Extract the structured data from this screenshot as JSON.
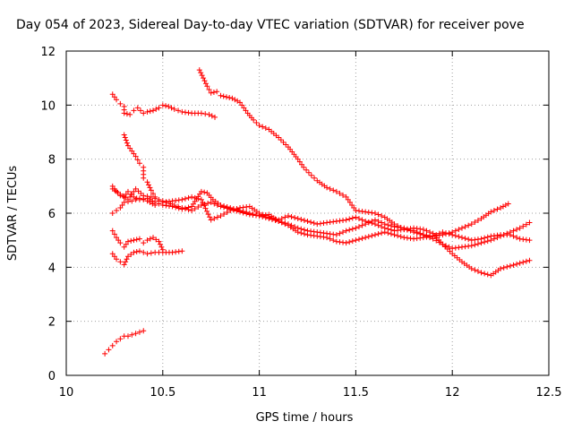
{
  "chart_data": {
    "type": "scatter",
    "title": "Day 054 of 2023, Sidereal Day-to-day VTEC variation (SDTVAR) for receiver pove",
    "xlabel": "GPS time / hours",
    "ylabel": "SDTVAR / TECUs",
    "xlim": [
      10,
      12.5
    ],
    "ylim": [
      0,
      12
    ],
    "xticks": [
      "10",
      "10.5",
      "11",
      "11.5",
      "12",
      "12.5"
    ],
    "yticks": [
      "0",
      "2",
      "4",
      "6",
      "8",
      "10",
      "12"
    ],
    "grid": true,
    "marker": "+",
    "color": "#ff0000",
    "series": [
      {
        "name": "track-1",
        "points": [
          [
            10.24,
            10.4
          ],
          [
            10.26,
            10.2
          ],
          [
            10.28,
            10.05
          ],
          [
            10.3,
            9.95
          ],
          [
            10.3,
            9.7
          ],
          [
            10.33,
            9.65
          ],
          [
            10.35,
            9.8
          ],
          [
            10.37,
            9.9
          ],
          [
            10.4,
            9.7
          ],
          [
            10.42,
            9.75
          ],
          [
            10.45,
            9.8
          ],
          [
            10.48,
            9.9
          ],
          [
            10.5,
            10.0
          ],
          [
            10.53,
            9.95
          ],
          [
            10.56,
            9.85
          ],
          [
            10.6,
            9.75
          ],
          [
            10.65,
            9.7
          ],
          [
            10.7,
            9.7
          ],
          [
            10.74,
            9.65
          ],
          [
            10.77,
            9.55
          ]
        ]
      },
      {
        "name": "track-2",
        "points": [
          [
            10.3,
            8.9
          ],
          [
            10.32,
            8.5
          ],
          [
            10.34,
            8.3
          ],
          [
            10.36,
            8.1
          ],
          [
            10.38,
            7.85
          ],
          [
            10.4,
            7.7
          ],
          [
            10.4,
            7.3
          ],
          [
            10.42,
            7.15
          ],
          [
            10.44,
            6.85
          ],
          [
            10.46,
            6.6
          ],
          [
            10.48,
            6.45
          ]
        ]
      },
      {
        "name": "track-3",
        "points": [
          [
            10.69,
            11.3
          ],
          [
            10.71,
            11.0
          ],
          [
            10.73,
            10.7
          ],
          [
            10.75,
            10.45
          ],
          [
            10.78,
            10.5
          ],
          [
            10.8,
            10.35
          ],
          [
            10.83,
            10.3
          ],
          [
            10.86,
            10.25
          ],
          [
            10.9,
            10.1
          ],
          [
            10.94,
            9.7
          ],
          [
            10.97,
            9.45
          ],
          [
            11.0,
            9.25
          ],
          [
            11.05,
            9.1
          ],
          [
            11.1,
            8.8
          ],
          [
            11.15,
            8.45
          ],
          [
            11.2,
            8.0
          ],
          [
            11.23,
            7.7
          ],
          [
            11.27,
            7.4
          ],
          [
            11.3,
            7.2
          ],
          [
            11.35,
            6.95
          ],
          [
            11.4,
            6.8
          ],
          [
            11.45,
            6.6
          ],
          [
            11.5,
            6.1
          ],
          [
            11.55,
            6.05
          ],
          [
            11.6,
            6.0
          ],
          [
            11.65,
            5.85
          ],
          [
            11.7,
            5.6
          ],
          [
            11.75,
            5.4
          ],
          [
            11.8,
            5.35
          ],
          [
            11.85,
            5.2
          ],
          [
            11.9,
            5.15
          ],
          [
            11.95,
            5.2
          ],
          [
            12.0,
            5.3
          ],
          [
            12.05,
            5.45
          ],
          [
            12.1,
            5.6
          ],
          [
            12.15,
            5.8
          ],
          [
            12.2,
            6.05
          ],
          [
            12.25,
            6.2
          ],
          [
            12.29,
            6.35
          ]
        ]
      },
      {
        "name": "track-4",
        "points": [
          [
            10.24,
            7.0
          ],
          [
            10.26,
            6.8
          ],
          [
            10.28,
            6.65
          ],
          [
            10.3,
            6.6
          ],
          [
            10.32,
            6.8
          ],
          [
            10.35,
            6.6
          ],
          [
            10.38,
            6.5
          ],
          [
            10.42,
            6.55
          ],
          [
            10.46,
            6.4
          ],
          [
            10.5,
            6.3
          ],
          [
            10.55,
            6.25
          ],
          [
            10.6,
            6.15
          ],
          [
            10.65,
            6.25
          ],
          [
            10.7,
            6.8
          ],
          [
            10.73,
            6.75
          ],
          [
            10.76,
            6.5
          ],
          [
            10.8,
            6.3
          ],
          [
            10.85,
            6.2
          ],
          [
            10.9,
            6.1
          ],
          [
            10.95,
            6.0
          ],
          [
            11.0,
            5.9
          ],
          [
            11.05,
            5.95
          ],
          [
            11.1,
            5.7
          ],
          [
            11.15,
            5.55
          ],
          [
            11.2,
            5.3
          ],
          [
            11.25,
            5.2
          ],
          [
            11.3,
            5.15
          ],
          [
            11.35,
            5.1
          ],
          [
            11.4,
            4.95
          ],
          [
            11.45,
            4.9
          ],
          [
            11.5,
            5.0
          ],
          [
            11.55,
            5.1
          ],
          [
            11.6,
            5.2
          ],
          [
            11.65,
            5.3
          ],
          [
            11.7,
            5.2
          ],
          [
            11.75,
            5.1
          ],
          [
            11.8,
            5.05
          ],
          [
            11.85,
            5.1
          ],
          [
            11.9,
            5.15
          ],
          [
            11.95,
            5.3
          ],
          [
            12.0,
            5.2
          ],
          [
            12.05,
            5.1
          ],
          [
            12.1,
            5.0
          ],
          [
            12.15,
            5.05
          ],
          [
            12.2,
            5.15
          ],
          [
            12.25,
            5.2
          ],
          [
            12.3,
            5.2
          ],
          [
            12.35,
            5.05
          ],
          [
            12.4,
            5.0
          ]
        ]
      },
      {
        "name": "track-5",
        "points": [
          [
            10.24,
            6.0
          ],
          [
            10.26,
            6.1
          ],
          [
            10.28,
            6.2
          ],
          [
            10.3,
            6.4
          ],
          [
            10.34,
            6.45
          ],
          [
            10.38,
            6.55
          ],
          [
            10.42,
            6.45
          ],
          [
            10.46,
            6.3
          ],
          [
            10.5,
            6.4
          ],
          [
            10.55,
            6.45
          ],
          [
            10.6,
            6.5
          ],
          [
            10.65,
            6.6
          ],
          [
            10.7,
            6.5
          ],
          [
            10.75,
            5.75
          ],
          [
            10.8,
            5.9
          ],
          [
            10.85,
            6.1
          ],
          [
            10.9,
            6.2
          ],
          [
            10.95,
            6.25
          ],
          [
            11.0,
            6.0
          ],
          [
            11.05,
            5.85
          ],
          [
            11.1,
            5.75
          ],
          [
            11.15,
            5.9
          ],
          [
            11.2,
            5.8
          ],
          [
            11.25,
            5.7
          ],
          [
            11.3,
            5.6
          ],
          [
            11.35,
            5.65
          ],
          [
            11.4,
            5.7
          ],
          [
            11.45,
            5.75
          ],
          [
            11.5,
            5.85
          ],
          [
            11.55,
            5.7
          ],
          [
            11.6,
            5.6
          ],
          [
            11.65,
            5.45
          ],
          [
            11.7,
            5.35
          ],
          [
            11.75,
            5.4
          ],
          [
            11.8,
            5.45
          ],
          [
            11.85,
            5.4
          ],
          [
            11.9,
            5.25
          ],
          [
            11.95,
            4.85
          ],
          [
            12.0,
            4.5
          ],
          [
            12.05,
            4.2
          ],
          [
            12.1,
            3.95
          ],
          [
            12.15,
            3.8
          ],
          [
            12.2,
            3.7
          ],
          [
            12.25,
            3.95
          ],
          [
            12.3,
            4.05
          ],
          [
            12.35,
            4.15
          ],
          [
            12.4,
            4.25
          ]
        ]
      },
      {
        "name": "track-6",
        "points": [
          [
            10.24,
            5.35
          ],
          [
            10.26,
            5.1
          ],
          [
            10.28,
            4.9
          ],
          [
            10.3,
            4.75
          ],
          [
            10.32,
            4.95
          ],
          [
            10.35,
            5.0
          ],
          [
            10.38,
            5.05
          ],
          [
            10.4,
            4.9
          ],
          [
            10.42,
            5.0
          ],
          [
            10.45,
            5.1
          ],
          [
            10.48,
            4.95
          ],
          [
            10.5,
            4.65
          ]
        ]
      },
      {
        "name": "track-7",
        "points": [
          [
            10.24,
            4.5
          ],
          [
            10.26,
            4.3
          ],
          [
            10.28,
            4.2
          ],
          [
            10.3,
            4.1
          ],
          [
            10.32,
            4.4
          ],
          [
            10.35,
            4.55
          ],
          [
            10.38,
            4.6
          ],
          [
            10.42,
            4.5
          ],
          [
            10.46,
            4.55
          ],
          [
            10.5,
            4.55
          ],
          [
            10.55,
            4.55
          ],
          [
            10.6,
            4.6
          ]
        ]
      },
      {
        "name": "track-8",
        "points": [
          [
            10.24,
            6.9
          ],
          [
            10.28,
            6.7
          ],
          [
            10.32,
            6.5
          ],
          [
            10.36,
            6.9
          ],
          [
            10.4,
            6.65
          ],
          [
            10.44,
            6.6
          ],
          [
            10.48,
            6.5
          ],
          [
            10.52,
            6.4
          ],
          [
            10.56,
            6.3
          ],
          [
            10.6,
            6.2
          ],
          [
            10.65,
            6.1
          ],
          [
            10.7,
            6.3
          ],
          [
            10.75,
            6.4
          ],
          [
            10.8,
            6.25
          ],
          [
            10.85,
            6.15
          ],
          [
            10.9,
            6.05
          ],
          [
            10.95,
            5.95
          ],
          [
            11.0,
            5.9
          ],
          [
            11.05,
            5.8
          ],
          [
            11.1,
            5.7
          ],
          [
            11.15,
            5.6
          ],
          [
            11.2,
            5.45
          ],
          [
            11.25,
            5.35
          ],
          [
            11.3,
            5.3
          ],
          [
            11.35,
            5.25
          ],
          [
            11.4,
            5.2
          ],
          [
            11.45,
            5.35
          ],
          [
            11.5,
            5.45
          ],
          [
            11.55,
            5.6
          ],
          [
            11.6,
            5.75
          ],
          [
            11.65,
            5.6
          ],
          [
            11.7,
            5.5
          ],
          [
            11.75,
            5.45
          ],
          [
            11.8,
            5.3
          ],
          [
            11.85,
            5.2
          ],
          [
            11.9,
            5.05
          ],
          [
            11.95,
            4.85
          ],
          [
            12.0,
            4.7
          ],
          [
            12.05,
            4.75
          ],
          [
            12.1,
            4.8
          ],
          [
            12.15,
            4.9
          ],
          [
            12.2,
            5.0
          ],
          [
            12.25,
            5.15
          ],
          [
            12.3,
            5.3
          ],
          [
            12.35,
            5.45
          ],
          [
            12.4,
            5.65
          ]
        ]
      },
      {
        "name": "track-9",
        "points": [
          [
            10.2,
            0.8
          ],
          [
            10.22,
            0.95
          ],
          [
            10.24,
            1.1
          ],
          [
            10.26,
            1.25
          ],
          [
            10.28,
            1.35
          ],
          [
            10.3,
            1.45
          ],
          [
            10.32,
            1.45
          ],
          [
            10.34,
            1.5
          ],
          [
            10.36,
            1.55
          ],
          [
            10.38,
            1.6
          ],
          [
            10.4,
            1.65
          ]
        ]
      }
    ]
  }
}
